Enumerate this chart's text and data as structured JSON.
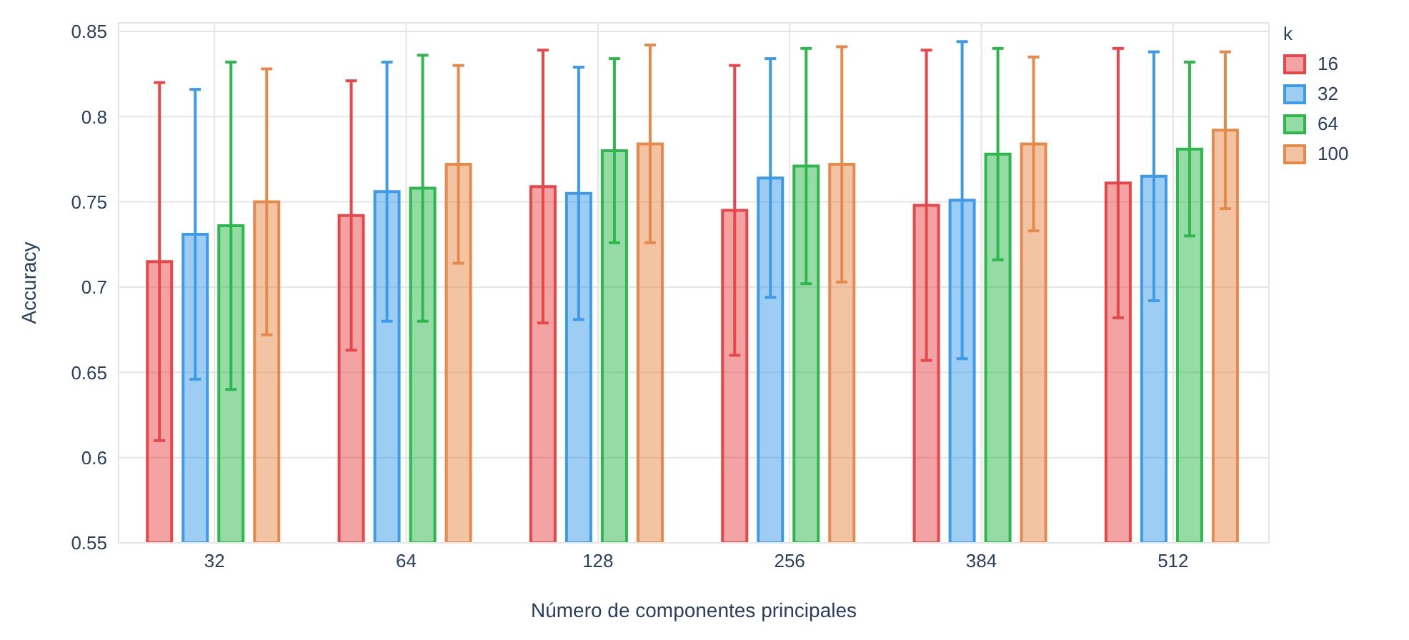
{
  "chart_data": {
    "type": "bar",
    "xlabel": "Número de componentes principales",
    "ylabel": "Accuracy",
    "legend_title": "k",
    "categories": [
      "32",
      "64",
      "128",
      "256",
      "384",
      "512"
    ],
    "series": [
      {
        "name": "16",
        "color": "#e8474a",
        "values": [
          0.715,
          0.742,
          0.759,
          0.745,
          0.748,
          0.761
        ],
        "errors": [
          0.105,
          0.079,
          0.08,
          0.085,
          0.091,
          0.079
        ]
      },
      {
        "name": "32",
        "color": "#3d9be9",
        "values": [
          0.731,
          0.756,
          0.755,
          0.764,
          0.751,
          0.765
        ],
        "errors": [
          0.085,
          0.076,
          0.074,
          0.07,
          0.093,
          0.073
        ]
      },
      {
        "name": "64",
        "color": "#2db84d",
        "values": [
          0.736,
          0.758,
          0.78,
          0.771,
          0.778,
          0.781
        ],
        "errors": [
          0.096,
          0.078,
          0.054,
          0.069,
          0.062,
          0.051
        ]
      },
      {
        "name": "100",
        "color": "#e58a4a",
        "values": [
          0.75,
          0.772,
          0.784,
          0.772,
          0.784,
          0.792
        ],
        "errors": [
          0.078,
          0.058,
          0.058,
          0.069,
          0.051,
          0.046
        ]
      }
    ],
    "ylim": [
      0.55,
      0.855
    ],
    "yticks": [
      0.55,
      0.6,
      0.65,
      0.7,
      0.75,
      0.8,
      0.85
    ],
    "grid": true,
    "legend": "top right"
  }
}
